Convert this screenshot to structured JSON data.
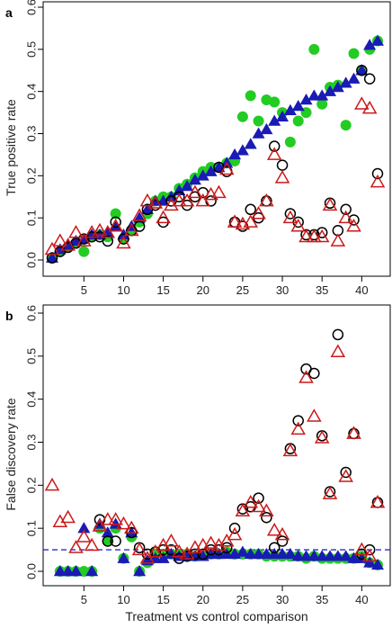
{
  "xlabel": "Treatment vs control comparison",
  "colors": {
    "green": "#22cc22",
    "blue": "#1a1ab4",
    "red": "#cc1a1a",
    "black": "#000000",
    "threshold": "#2a2ad6"
  },
  "chart_data": [
    {
      "type": "scatter",
      "panel_label": "a",
      "ylabel": "True positive rate",
      "xlim": [
        0,
        43
      ],
      "ylim": [
        0,
        0.6
      ],
      "xticks": [
        5,
        10,
        15,
        20,
        25,
        30,
        35,
        40
      ],
      "yticks": [
        0.0,
        0.1,
        0.2,
        0.3,
        0.4,
        0.5,
        0.6
      ],
      "series": [
        {
          "marker": "filled-circle",
          "color": "green",
          "x": [
            1,
            2,
            3,
            4,
            5,
            6,
            7,
            8,
            9,
            10,
            11,
            12,
            13,
            14,
            15,
            16,
            17,
            18,
            19,
            20,
            21,
            22,
            23,
            24,
            25,
            26,
            27,
            28,
            29,
            30,
            31,
            32,
            33,
            34,
            35,
            36,
            37,
            38,
            39,
            40,
            41,
            42
          ],
          "y": [
            0.005,
            0.02,
            0.03,
            0.04,
            0.02,
            0.055,
            0.06,
            0.055,
            0.11,
            0.05,
            0.07,
            0.09,
            0.11,
            0.14,
            0.15,
            0.15,
            0.17,
            0.18,
            0.195,
            0.21,
            0.22,
            0.22,
            0.23,
            0.235,
            0.34,
            0.39,
            0.33,
            0.38,
            0.375,
            0.35,
            0.28,
            0.33,
            0.35,
            0.5,
            0.37,
            0.41,
            0.415,
            0.32,
            0.49,
            0.45,
            0.5,
            0.52
          ]
        },
        {
          "marker": "filled-triangle",
          "color": "blue",
          "x": [
            1,
            2,
            3,
            4,
            5,
            6,
            7,
            8,
            9,
            10,
            11,
            12,
            13,
            14,
            15,
            16,
            17,
            18,
            19,
            20,
            21,
            22,
            23,
            24,
            25,
            26,
            27,
            28,
            29,
            30,
            31,
            32,
            33,
            34,
            35,
            36,
            37,
            38,
            39,
            40,
            41,
            42
          ],
          "y": [
            0.005,
            0.025,
            0.035,
            0.045,
            0.05,
            0.06,
            0.06,
            0.065,
            0.08,
            0.06,
            0.08,
            0.1,
            0.12,
            0.14,
            0.14,
            0.15,
            0.165,
            0.175,
            0.19,
            0.2,
            0.21,
            0.22,
            0.23,
            0.25,
            0.26,
            0.275,
            0.3,
            0.31,
            0.33,
            0.34,
            0.355,
            0.365,
            0.38,
            0.39,
            0.39,
            0.4,
            0.41,
            0.42,
            0.43,
            0.45,
            0.51,
            0.52
          ]
        },
        {
          "marker": "open-circle",
          "color": "black",
          "x": [
            1,
            2,
            3,
            4,
            5,
            6,
            7,
            8,
            9,
            10,
            11,
            12,
            13,
            14,
            15,
            16,
            17,
            18,
            19,
            20,
            21,
            22,
            23,
            24,
            25,
            26,
            27,
            28,
            29,
            30,
            31,
            32,
            33,
            34,
            35,
            36,
            37,
            38,
            39,
            40,
            41,
            42
          ],
          "y": [
            0.005,
            0.02,
            0.03,
            0.04,
            0.05,
            0.055,
            0.055,
            0.045,
            0.09,
            0.05,
            0.07,
            0.08,
            0.12,
            0.13,
            0.09,
            0.14,
            0.15,
            0.13,
            0.15,
            0.16,
            0.14,
            0.22,
            0.21,
            0.09,
            0.08,
            0.12,
            0.1,
            0.14,
            0.27,
            0.225,
            0.11,
            0.09,
            0.06,
            0.06,
            0.065,
            0.135,
            0.07,
            0.12,
            0.095,
            0.45,
            0.43,
            0.205
          ]
        },
        {
          "marker": "open-triangle",
          "color": "red",
          "x": [
            1,
            2,
            3,
            4,
            5,
            6,
            7,
            8,
            9,
            10,
            11,
            12,
            13,
            14,
            15,
            16,
            17,
            18,
            19,
            20,
            21,
            22,
            23,
            24,
            25,
            26,
            27,
            28,
            29,
            30,
            31,
            32,
            33,
            34,
            35,
            36,
            37,
            38,
            39,
            40,
            41,
            42
          ],
          "y": [
            0.025,
            0.045,
            0.035,
            0.065,
            0.045,
            0.065,
            0.07,
            0.065,
            0.08,
            0.04,
            0.07,
            0.105,
            0.14,
            0.135,
            0.1,
            0.13,
            0.14,
            0.14,
            0.16,
            0.14,
            0.155,
            0.16,
            0.215,
            0.09,
            0.085,
            0.09,
            0.11,
            0.14,
            0.25,
            0.195,
            0.1,
            0.08,
            0.055,
            0.055,
            0.055,
            0.13,
            0.045,
            0.1,
            0.08,
            0.37,
            0.36,
            0.185
          ]
        }
      ]
    },
    {
      "type": "scatter",
      "panel_label": "b",
      "ylabel": "False discovery rate",
      "xlim": [
        0,
        43
      ],
      "ylim": [
        0,
        0.6
      ],
      "xticks": [
        5,
        10,
        15,
        20,
        25,
        30,
        35,
        40
      ],
      "yticks": [
        0.0,
        0.1,
        0.2,
        0.3,
        0.4,
        0.5,
        0.6
      ],
      "threshold": 0.05,
      "series": [
        {
          "marker": "filled-circle",
          "color": "green",
          "x": [
            2,
            3,
            4,
            5,
            6,
            7,
            8,
            9,
            10,
            11,
            12,
            13,
            14,
            15,
            16,
            17,
            18,
            19,
            20,
            21,
            22,
            23,
            24,
            25,
            26,
            27,
            28,
            29,
            30,
            31,
            32,
            33,
            34,
            35,
            36,
            37,
            38,
            39,
            40,
            41,
            42
          ],
          "y": [
            0.0,
            0.0,
            0.0,
            0.0,
            0.0,
            0.1,
            0.07,
            0.1,
            0.03,
            0.08,
            0.0,
            0.02,
            0.04,
            0.04,
            0.04,
            0.04,
            0.04,
            0.035,
            0.04,
            0.04,
            0.04,
            0.045,
            0.04,
            0.04,
            0.04,
            0.04,
            0.035,
            0.035,
            0.035,
            0.035,
            0.035,
            0.03,
            0.035,
            0.03,
            0.03,
            0.03,
            0.03,
            0.03,
            0.035,
            0.02,
            0.015
          ]
        },
        {
          "marker": "filled-triangle",
          "color": "blue",
          "x": [
            2,
            3,
            4,
            5,
            6,
            7,
            8,
            9,
            10,
            11,
            12,
            13,
            14,
            15,
            16,
            17,
            18,
            19,
            20,
            21,
            22,
            23,
            24,
            25,
            26,
            27,
            28,
            29,
            30,
            31,
            32,
            33,
            34,
            35,
            36,
            37,
            38,
            39,
            40,
            41,
            42
          ],
          "y": [
            0.0,
            0.0,
            0.0,
            0.1,
            0.0,
            0.11,
            0.09,
            0.11,
            0.03,
            0.09,
            0.0,
            0.025,
            0.03,
            0.03,
            0.04,
            0.035,
            0.035,
            0.035,
            0.035,
            0.04,
            0.04,
            0.04,
            0.04,
            0.045,
            0.04,
            0.04,
            0.04,
            0.04,
            0.04,
            0.04,
            0.035,
            0.035,
            0.035,
            0.035,
            0.035,
            0.035,
            0.035,
            0.03,
            0.03,
            0.02,
            0.015
          ]
        },
        {
          "marker": "open-circle",
          "color": "black",
          "x": [
            7,
            8,
            9,
            11,
            12,
            13,
            14,
            15,
            16,
            17,
            18,
            19,
            20,
            21,
            22,
            23,
            24,
            25,
            26,
            27,
            28,
            29,
            30,
            31,
            32,
            33,
            34,
            35,
            36,
            37,
            38,
            39,
            40,
            41,
            42
          ],
          "y": [
            0.12,
            0.07,
            0.07,
            0.09,
            0.055,
            0.04,
            0.045,
            0.05,
            0.05,
            0.03,
            0.035,
            0.04,
            0.04,
            0.05,
            0.05,
            0.055,
            0.1,
            0.145,
            0.15,
            0.17,
            0.125,
            0.055,
            0.07,
            0.285,
            0.35,
            0.47,
            0.46,
            0.315,
            0.185,
            0.55,
            0.23,
            0.32,
            0.04,
            0.05,
            0.16
          ]
        },
        {
          "marker": "open-triangle",
          "color": "red",
          "x": [
            1,
            2,
            3,
            4,
            5,
            6,
            7,
            8,
            9,
            10,
            11,
            12,
            13,
            14,
            15,
            16,
            17,
            18,
            19,
            20,
            21,
            22,
            23,
            24,
            25,
            26,
            27,
            28,
            29,
            30,
            31,
            32,
            33,
            34,
            35,
            36,
            37,
            38,
            39,
            40,
            41,
            42
          ],
          "y": [
            0.2,
            0.115,
            0.125,
            0.055,
            0.08,
            0.06,
            0.105,
            0.12,
            0.12,
            0.11,
            0.1,
            0.05,
            0.03,
            0.045,
            0.06,
            0.07,
            0.045,
            0.04,
            0.055,
            0.06,
            0.065,
            0.06,
            0.07,
            0.085,
            0.14,
            0.16,
            0.15,
            0.14,
            0.095,
            0.085,
            0.28,
            0.33,
            0.45,
            0.36,
            0.31,
            0.18,
            0.51,
            0.22,
            0.32,
            0.05,
            0.035,
            0.16
          ]
        }
      ]
    }
  ]
}
